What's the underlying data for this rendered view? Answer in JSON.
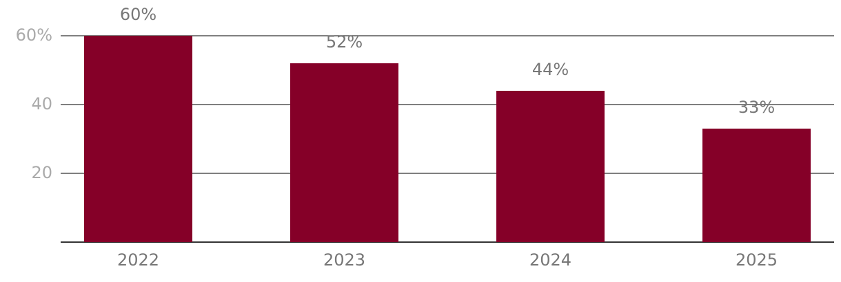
{
  "chart_data": {
    "type": "bar",
    "categories": [
      "2022",
      "2023",
      "2024",
      "2025"
    ],
    "values": [
      60,
      52,
      44,
      33
    ],
    "value_labels": [
      "60%",
      "52%",
      "44%",
      "33%"
    ],
    "color": "#850028",
    "ylim": [
      0,
      60
    ],
    "yticks": [
      20,
      40,
      {
        "value": 60,
        "label": "60%"
      }
    ],
    "grid": true
  }
}
